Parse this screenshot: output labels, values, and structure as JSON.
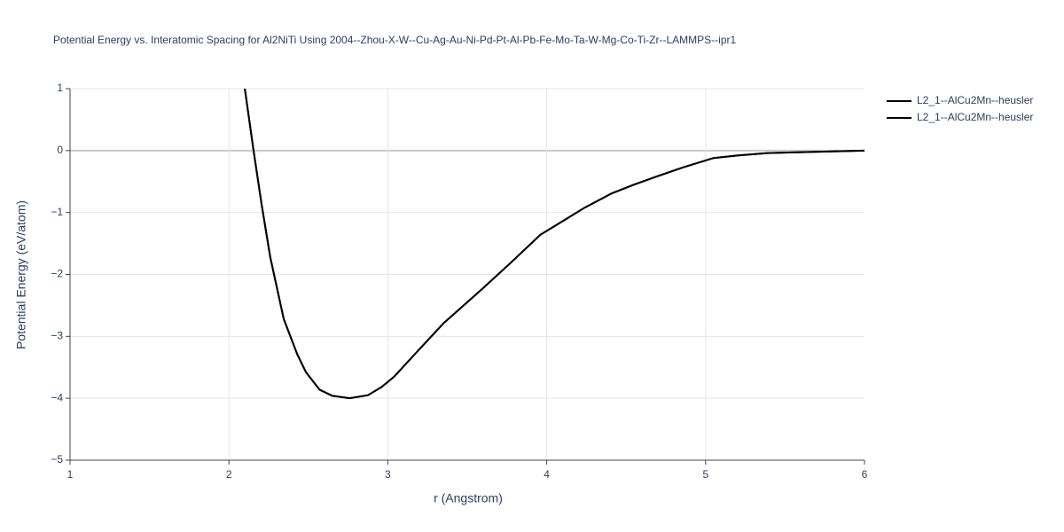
{
  "chart_data": {
    "type": "line",
    "title": "Potential Energy vs. Interatomic Spacing for Al2NiTi Using 2004--Zhou-X-W--Cu-Ag-Au-Ni-Pd-Pt-Al-Pb-Fe-Mo-Ta-W-Mg-Co-Ti-Zr--LAMMPS--ipr1",
    "x_label": "r (Angstrom)",
    "y_label": "Potential Energy (eV/atom)",
    "xlim": [
      1,
      6
    ],
    "ylim": [
      -5,
      1
    ],
    "xticks": [
      1,
      2,
      3,
      4,
      5,
      6
    ],
    "yticks": [
      {
        "value": -5,
        "label": "−5"
      },
      {
        "value": -4,
        "label": "−4"
      },
      {
        "value": -3,
        "label": "−3"
      },
      {
        "value": -2,
        "label": "−2"
      },
      {
        "value": -1,
        "label": "−1"
      },
      0,
      1
    ],
    "grid": true,
    "legend": "top-right",
    "series": [
      {
        "name": "L2_1--AlCu2Mn--heusler",
        "color": "#000000",
        "x": [
          2.1,
          2.155,
          2.205,
          2.26,
          2.345,
          2.43,
          2.485,
          2.57,
          2.65,
          2.76,
          2.875,
          2.96,
          3.04,
          3.18,
          3.35,
          3.6,
          3.77,
          3.96,
          4.24,
          4.41,
          4.55,
          4.69,
          4.86,
          5.05,
          5.2,
          5.39,
          5.69,
          6.0
        ],
        "values": [
          1.0,
          0.0,
          -0.86,
          -1.72,
          -2.72,
          -3.29,
          -3.58,
          -3.86,
          -3.96,
          -4.0,
          -3.95,
          -3.82,
          -3.65,
          -3.26,
          -2.79,
          -2.22,
          -1.82,
          -1.36,
          -0.92,
          -0.69,
          -0.55,
          -0.42,
          -0.27,
          -0.12,
          -0.08,
          -0.04,
          -0.02,
          0.0
        ]
      },
      {
        "name": "L2_1--AlCu2Mn--heusler",
        "color": "#000000",
        "x": [
          2.1,
          2.155,
          2.205,
          2.26,
          2.345,
          2.43,
          2.485,
          2.57,
          2.65,
          2.76,
          2.875,
          2.96,
          3.04,
          3.18,
          3.35,
          3.6,
          3.77,
          3.96,
          4.24,
          4.41,
          4.55,
          4.69,
          4.86,
          5.05,
          5.2,
          5.39,
          5.69,
          6.0
        ],
        "values": [
          1.0,
          0.0,
          -0.86,
          -1.72,
          -2.72,
          -3.29,
          -3.58,
          -3.86,
          -3.96,
          -4.0,
          -3.95,
          -3.82,
          -3.65,
          -3.26,
          -2.79,
          -2.22,
          -1.82,
          -1.36,
          -0.92,
          -0.69,
          -0.55,
          -0.42,
          -0.27,
          -0.12,
          -0.08,
          -0.04,
          -0.02,
          0.0
        ]
      }
    ]
  }
}
